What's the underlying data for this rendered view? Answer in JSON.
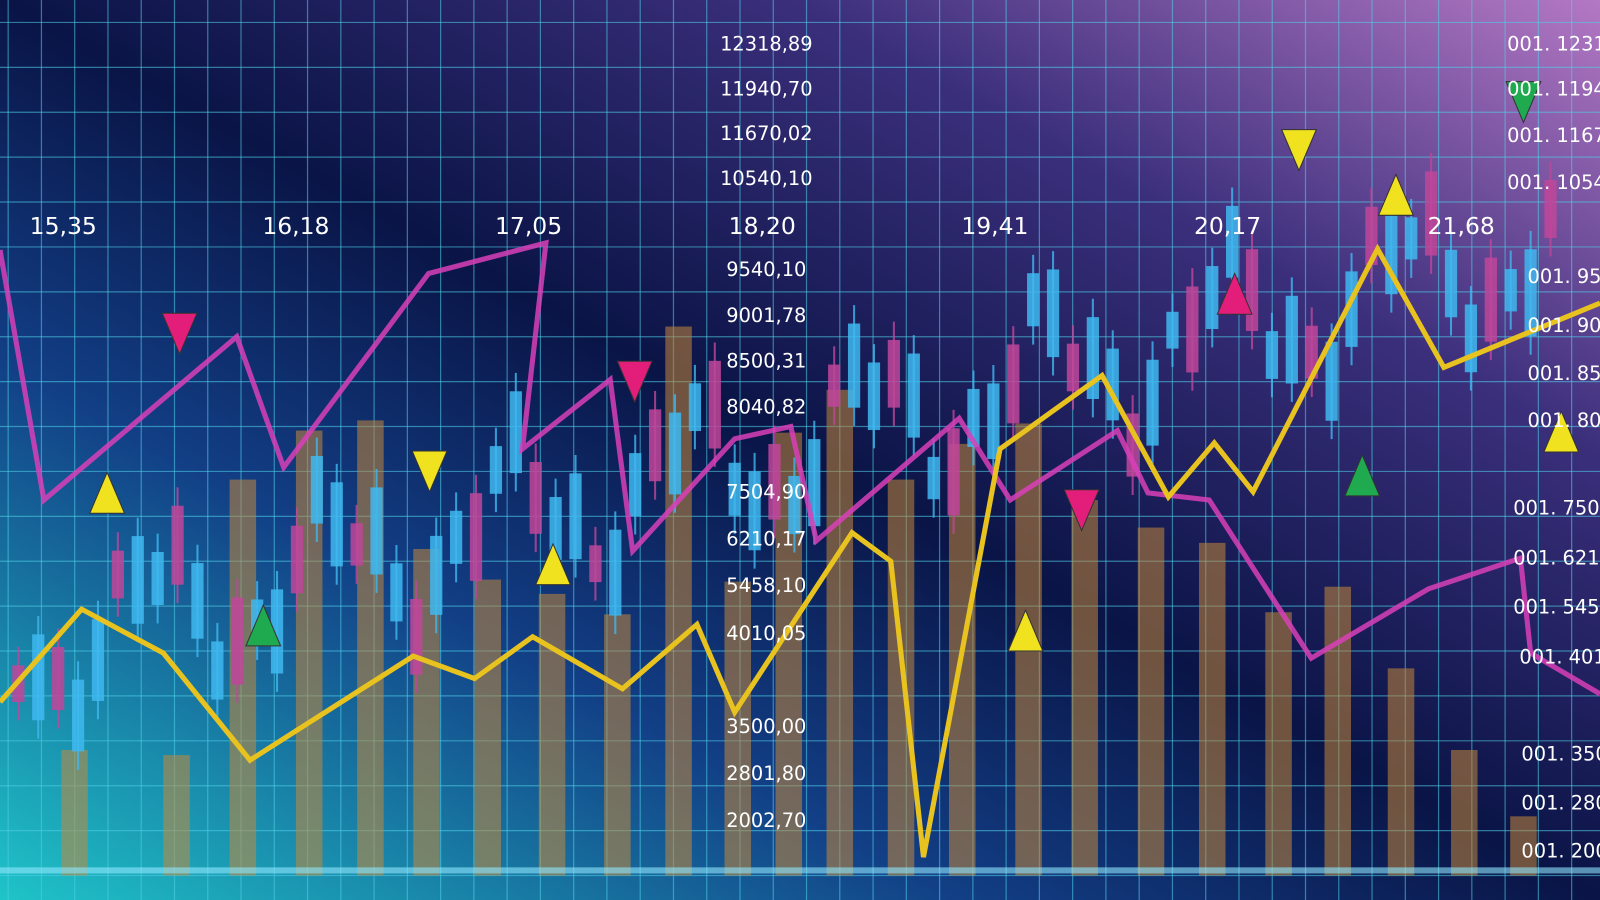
{
  "x_labels": [
    "15,35",
    "16,18",
    "17,05",
    "18,20",
    "19,41",
    "20,17",
    "21,68"
  ],
  "center_labels": [
    "12318,89",
    "11940,70",
    "11670,02",
    "10540,10",
    "9540,10",
    "9001,78",
    "8500,31",
    "8040,82",
    "7504,90",
    "6210,17",
    "5458,10",
    "4010,05",
    "3500,00",
    "2801,80",
    "2002,70"
  ],
  "right_labels": [
    "001. 1231",
    "001. 1194",
    "001. 1167",
    "001. 1054",
    "001. 95",
    "001. 90",
    "001. 85",
    "001. 80",
    "001. 750",
    "001. 621",
    "001. 545",
    "001. 401",
    "001. 350",
    "001. 280",
    "001. 200"
  ]
}
